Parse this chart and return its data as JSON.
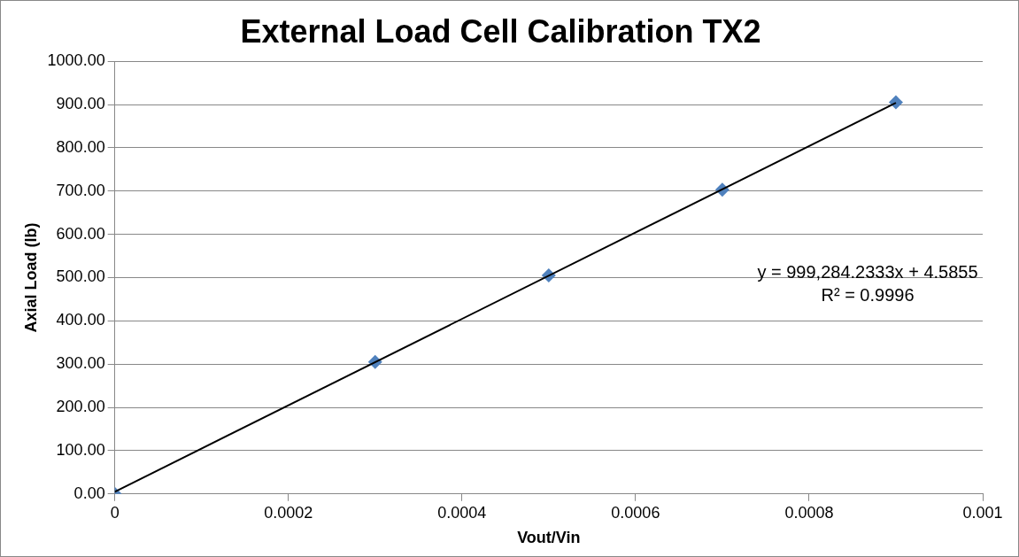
{
  "chart_data": {
    "type": "scatter",
    "title": "External Load Cell Calibration TX2",
    "xlabel": "Vout/Vin",
    "ylabel": "Axial Load (lb)",
    "x": [
      0,
      0.0003,
      0.0005,
      0.0007,
      0.0009
    ],
    "series": [
      {
        "color": "#4f81bd",
        "values": [
          0,
          305,
          505,
          703,
          905
        ],
        "marker": "diamond"
      },
      {
        "type": "line",
        "color": "#000000",
        "x": [
          0,
          0.0009
        ],
        "values": [
          5,
          904
        ],
        "marker": "none"
      }
    ],
    "xlim": [
      0,
      0.001
    ],
    "xticks": [
      0,
      0.0002,
      0.0004,
      0.0006,
      0.0008,
      0.001
    ],
    "ylim": [
      0,
      1000
    ],
    "yticks": [
      {
        "value": 0,
        "label": "0.00"
      },
      {
        "value": 100,
        "label": "100.00"
      },
      {
        "value": 200,
        "label": "200.00"
      },
      {
        "value": 300,
        "label": "300.00"
      },
      {
        "value": 400,
        "label": "400.00"
      },
      {
        "value": 500,
        "label": "500.00"
      },
      {
        "value": 600,
        "label": "600.00"
      },
      {
        "value": 700,
        "label": "700.00"
      },
      {
        "value": 800,
        "label": "800.00"
      },
      {
        "value": 900,
        "label": "900.00"
      },
      {
        "value": 1000,
        "label": "1000.00"
      }
    ],
    "grid": "y",
    "legend": false,
    "annotations": [
      "y = 999,284.2333x + 4.5855",
      "R² = 0.9996"
    ]
  }
}
